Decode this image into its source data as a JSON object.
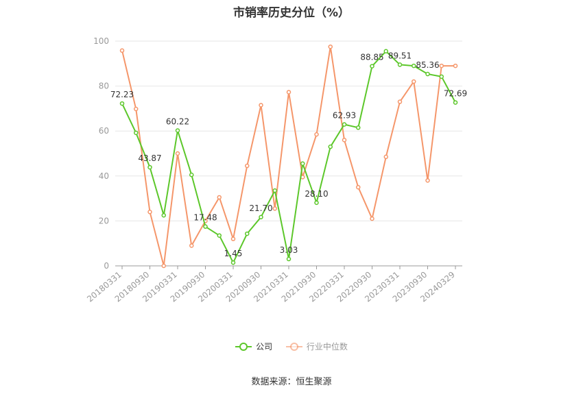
{
  "title": "市销率历史分位（%）",
  "source": "数据来源：恒生聚源",
  "chart_data": {
    "type": "line",
    "ylim": [
      0,
      100
    ],
    "yticks": [
      0,
      20,
      40,
      60,
      80,
      100
    ],
    "grid": true,
    "legend_position": "bottom",
    "tick_labels": [
      "20180331",
      "20180930",
      "20190331",
      "20190930",
      "20200331",
      "20200930",
      "20210331",
      "20210930",
      "20220331",
      "20220930",
      "20230331",
      "20230930",
      "20240329"
    ],
    "x": [
      "20180331",
      "20180630",
      "20180930",
      "20181231",
      "20190331",
      "20190630",
      "20190930",
      "20191231",
      "20200331",
      "20200630",
      "20200930",
      "20201231",
      "20210331",
      "20210630",
      "20210930",
      "20211231",
      "20220331",
      "20220630",
      "20220930",
      "20221231",
      "20230331",
      "20230630",
      "20230930",
      "20231231",
      "20240329"
    ],
    "series": [
      {
        "name": "公司",
        "color": "#5cc72a",
        "values": [
          72.23,
          59.2,
          43.87,
          22.5,
          60.22,
          40.5,
          17.48,
          13.5,
          1.45,
          14.3,
          21.7,
          33.5,
          3.03,
          45.5,
          28.1,
          53.0,
          62.93,
          61.5,
          88.85,
          95.5,
          89.51,
          89.0,
          85.36,
          84.2,
          72.69
        ]
      },
      {
        "name": "行业中位数",
        "color": "#f5966a",
        "values": [
          95.8,
          69.8,
          24.0,
          0.0,
          50.0,
          9.0,
          20.0,
          30.5,
          12.0,
          44.5,
          71.5,
          25.5,
          77.3,
          39.5,
          58.5,
          97.5,
          56.0,
          35.0,
          21.0,
          48.5,
          73.0,
          82.0,
          38.0,
          89.0,
          89.0
        ]
      }
    ],
    "data_labels": [
      {
        "series": 0,
        "index": 0,
        "text": "72.23"
      },
      {
        "series": 0,
        "index": 2,
        "text": "43.87"
      },
      {
        "series": 0,
        "index": 4,
        "text": "60.22"
      },
      {
        "series": 0,
        "index": 6,
        "text": "17.48"
      },
      {
        "series": 0,
        "index": 8,
        "text": "1.45"
      },
      {
        "series": 0,
        "index": 10,
        "text": "21.70"
      },
      {
        "series": 0,
        "index": 12,
        "text": "3.03"
      },
      {
        "series": 0,
        "index": 14,
        "text": "28.10"
      },
      {
        "series": 0,
        "index": 16,
        "text": "62.93"
      },
      {
        "series": 0,
        "index": 18,
        "text": "88.85"
      },
      {
        "series": 0,
        "index": 20,
        "text": "89.51"
      },
      {
        "series": 0,
        "index": 22,
        "text": "85.36"
      },
      {
        "series": 0,
        "index": 24,
        "text": "72.69"
      }
    ]
  }
}
